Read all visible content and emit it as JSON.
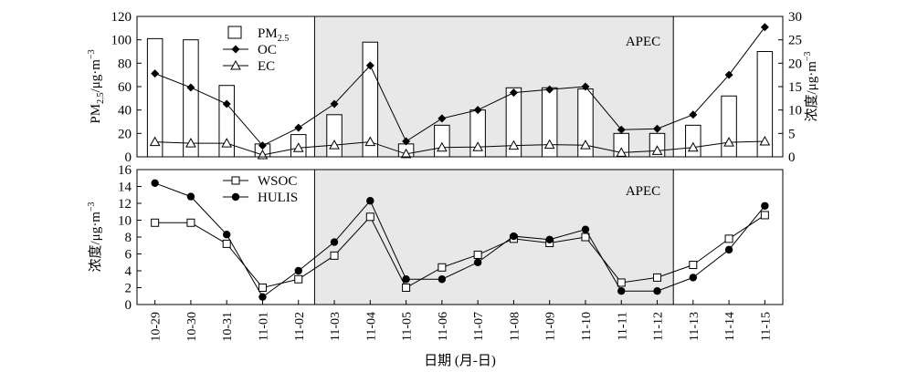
{
  "chart_data": [
    {
      "type": "bar",
      "categories": [
        "10-29",
        "10-30",
        "10-31",
        "11-01",
        "11-02",
        "11-03",
        "11-04",
        "11-05",
        "11-06",
        "11-07",
        "11-08",
        "11-09",
        "11-10",
        "11-11",
        "11-12",
        "11-13",
        "11-14",
        "11-15"
      ],
      "ylabel_left": {
        "main": "PM",
        "sub": "2.5",
        "tail": "/μg·m",
        "sup": "−3"
      },
      "ylabel_right": {
        "main": "浓度/μg·m",
        "sup": "−3"
      },
      "ylim_left": [
        0,
        120
      ],
      "ylim_right": [
        0,
        30
      ],
      "yticks_left": [
        0,
        20,
        40,
        60,
        80,
        100,
        120
      ],
      "yticks_right": [
        0,
        5,
        10,
        15,
        20,
        25,
        30
      ],
      "series": [
        {
          "name": "PM",
          "name_sub": "2.5",
          "axis": "left",
          "kind": "bar",
          "values": [
            101,
            100,
            61,
            11,
            19,
            36,
            98,
            11,
            27,
            40,
            59,
            59,
            58,
            20,
            20,
            27,
            52,
            90
          ]
        },
        {
          "name": "OC",
          "axis": "right",
          "kind": "line",
          "marker": "diamond",
          "values": [
            17.8,
            14.8,
            11.3,
            2.4,
            6.2,
            11.3,
            19.5,
            3.3,
            8.2,
            10.0,
            13.7,
            14.4,
            15.0,
            5.8,
            6.0,
            9.0,
            17.5,
            27.7
          ]
        },
        {
          "name": "EC",
          "axis": "right",
          "kind": "line",
          "marker": "triangle",
          "values": [
            3.2,
            2.9,
            2.9,
            0.4,
            1.9,
            2.5,
            3.2,
            0.6,
            2.0,
            2.1,
            2.4,
            2.6,
            2.5,
            0.9,
            1.3,
            2.0,
            3.1,
            3.3
          ]
        }
      ],
      "annotation": "APEC",
      "shaded_range": [
        "11-03",
        "11-12"
      ],
      "legend_position": "top-left"
    },
    {
      "type": "line",
      "categories": [
        "10-29",
        "10-30",
        "10-31",
        "11-01",
        "11-02",
        "11-03",
        "11-04",
        "11-05",
        "11-06",
        "11-07",
        "11-08",
        "11-09",
        "11-10",
        "11-11",
        "11-12",
        "11-13",
        "11-14",
        "11-15"
      ],
      "ylabel": {
        "main": "浓度/μg·m",
        "sup": "−3"
      },
      "ylim": [
        0,
        16
      ],
      "yticks": [
        0,
        2,
        4,
        6,
        8,
        10,
        12,
        14,
        16
      ],
      "series": [
        {
          "name": "WSOC",
          "marker": "square-open",
          "values": [
            9.7,
            9.7,
            7.2,
            2.0,
            3.0,
            5.8,
            10.4,
            2.0,
            4.4,
            5.9,
            7.8,
            7.3,
            8.0,
            2.6,
            3.2,
            4.7,
            7.8,
            10.6
          ]
        },
        {
          "name": "HULIS",
          "marker": "circle-filled",
          "values": [
            14.4,
            12.8,
            8.3,
            0.9,
            4.0,
            7.4,
            12.3,
            3.0,
            3.0,
            5.0,
            8.1,
            7.7,
            8.9,
            1.6,
            1.6,
            3.2,
            6.5,
            11.7
          ]
        }
      ],
      "annotation": "APEC",
      "shaded_range": [
        "11-03",
        "11-12"
      ],
      "legend_position": "top-left",
      "xlabel": "日期 (月-日)"
    }
  ],
  "colors": {
    "shade": "#e8e8e8",
    "ink": "#000000",
    "background": "#ffffff"
  }
}
